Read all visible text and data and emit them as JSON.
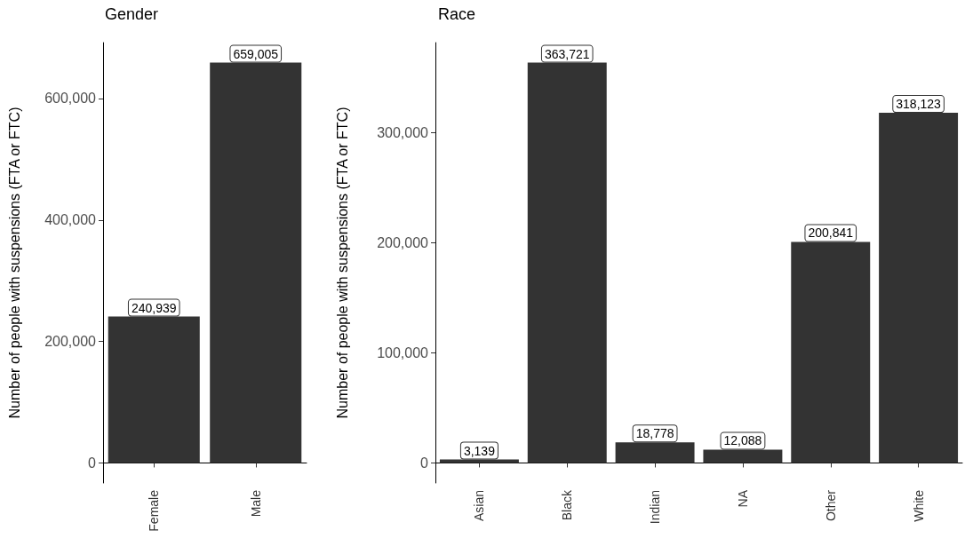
{
  "chart_data": [
    {
      "type": "bar",
      "title": "Gender",
      "ylabel": "Number of people with suspensions (FTA or FTC)",
      "categories": [
        "Female",
        "Male"
      ],
      "values": [
        240939,
        659005
      ],
      "color": "#333333",
      "value_labels": [
        "240,939",
        "659,005"
      ],
      "ylim": [
        -32950,
        691955
      ],
      "yticks": [
        {
          "value": 0,
          "label": "0"
        },
        {
          "value": 200000,
          "label": "200,000"
        },
        {
          "value": 400000,
          "label": "400,000"
        },
        {
          "value": 600000,
          "label": "600,000"
        }
      ],
      "grid": false
    },
    {
      "type": "bar",
      "title": "Race",
      "ylabel": "Number of people with suspensions (FTA or FTC)",
      "categories": [
        "Asian",
        "Black",
        "Indian",
        "NA",
        "Other",
        "White"
      ],
      "values": [
        3139,
        363721,
        18778,
        12088,
        200841,
        318123
      ],
      "color": "#333333",
      "value_labels": [
        "3,139",
        "363,721",
        "18,778",
        "12,088",
        "200,841",
        "318,123"
      ],
      "ylim": [
        -18186,
        381907
      ],
      "yticks": [
        {
          "value": 0,
          "label": "0"
        },
        {
          "value": 100000,
          "label": "100,000"
        },
        {
          "value": 200000,
          "label": "200,000"
        },
        {
          "value": 300000,
          "label": "300,000"
        }
      ],
      "grid": false
    }
  ]
}
